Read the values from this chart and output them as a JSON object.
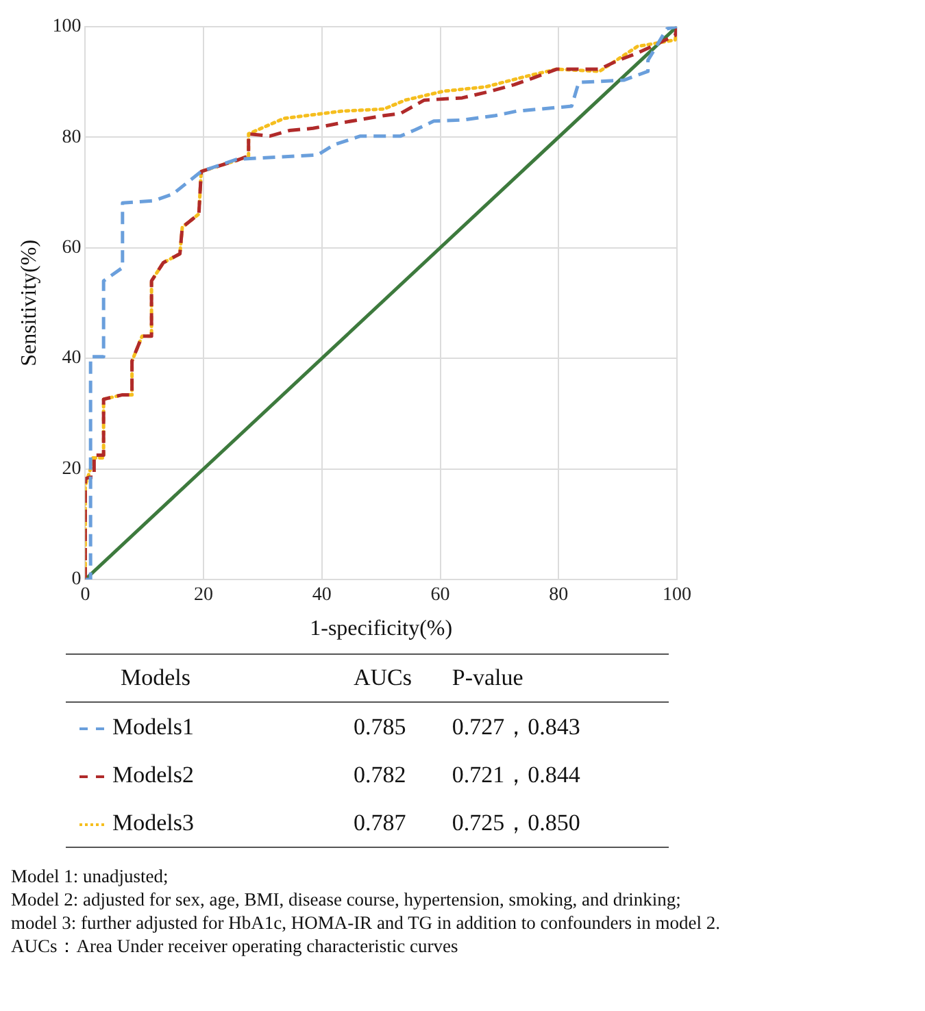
{
  "chart_data": {
    "type": "line",
    "xlabel": "1-specificity(%)",
    "ylabel": "Sensitivity(%)",
    "xlim": [
      0,
      100
    ],
    "ylim": [
      0,
      100
    ],
    "xticks": [
      0,
      20,
      40,
      60,
      80,
      100
    ],
    "yticks": [
      0,
      20,
      40,
      60,
      80,
      100
    ],
    "grid": true,
    "marker": "none",
    "legend": "bottom",
    "legend_title": "Models",
    "series": [
      {
        "name": "Models1",
        "color": "#6a9fdc",
        "line_style": "dashed",
        "x": [
          0,
          0.9,
          0.9,
          3.1,
          3.1,
          6.3,
          6.3,
          11.6,
          14.8,
          19.6,
          25.6,
          39.3,
          42,
          46.5,
          53.3,
          55.7,
          58.9,
          63.7,
          69.3,
          72.9,
          82.2,
          83.4,
          91,
          95.1,
          95.1,
          98.3,
          100
        ],
        "values": [
          0,
          0,
          40.3,
          40.3,
          54,
          56.4,
          68.1,
          68.5,
          69.7,
          73.8,
          76,
          76.8,
          78.6,
          80.2,
          80.2,
          81.3,
          82.9,
          83.1,
          83.9,
          84.7,
          85.6,
          89.9,
          90.3,
          91.9,
          93.9,
          99.6,
          100
        ]
      },
      {
        "name": "Models2",
        "color": "#b02a2a",
        "line_style": "dashed",
        "x": [
          0,
          0,
          0.8,
          1.5,
          1.5,
          3.1,
          3.1,
          6.3,
          7.9,
          7.9,
          9.6,
          11.2,
          11.2,
          13.2,
          16,
          16.4,
          19.2,
          19.6,
          25.6,
          27.6,
          27.6,
          31.2,
          34.5,
          38.5,
          43.3,
          50.5,
          53.3,
          57.3,
          63.7,
          68.5,
          72.5,
          75.7,
          79.7,
          86.9,
          90.1,
          93.3,
          96.5,
          99.7,
          100
        ],
        "values": [
          0,
          18.2,
          18.5,
          18.5,
          22.5,
          22.5,
          32.6,
          33.4,
          33.4,
          39.5,
          44,
          44,
          54,
          57.3,
          58.9,
          63.7,
          66.1,
          73.8,
          75.8,
          76.6,
          80.6,
          80.2,
          81.2,
          81.6,
          82.6,
          83.9,
          84.3,
          86.7,
          87.1,
          88.3,
          89.5,
          90.7,
          92.3,
          92.3,
          93.9,
          95.2,
          96.8,
          98.4,
          100
        ]
      },
      {
        "name": "Models3",
        "color": "#f5be1e",
        "line_style": "dotted",
        "x": [
          0,
          0,
          1.2,
          1.2,
          3.1,
          3.1,
          6.3,
          7.9,
          7.9,
          9.6,
          11.2,
          11.2,
          13.2,
          16,
          16.4,
          19.2,
          19.6,
          25.6,
          27.6,
          27.6,
          33.6,
          43.3,
          50.5,
          54.1,
          60.5,
          67.7,
          74.9,
          79.7,
          86.9,
          93.3,
          99.7,
          100
        ],
        "values": [
          0,
          17,
          21,
          22,
          22,
          32.6,
          33.4,
          33.4,
          39.5,
          44,
          44,
          54,
          57.3,
          58.9,
          63.7,
          66.1,
          73.8,
          75.8,
          76.6,
          80.6,
          83.4,
          84.7,
          85.1,
          86.7,
          88.3,
          89.1,
          91.1,
          92.3,
          91.9,
          96.4,
          97.6,
          100
        ]
      },
      {
        "color": "#3d7a3d",
        "line_style": "solid",
        "x": [
          0,
          100
        ],
        "values": [
          0,
          100
        ]
      }
    ],
    "annotations": [
      "AUCs",
      "P-value",
      "0.785",
      "0.727，0.843",
      "0.782",
      "0.721，0.844",
      "0.787",
      "0.725，0.850",
      "Model 1: unadjusted;",
      "Model 2: adjusted for sex, age, BMI, disease course, hypertension, smoking, and drinking;",
      "model 3: further adjusted for HbA1c, HOMA-IR and TG in addition to confounders in model 2.",
      "AUCs：Area Under receiver operating characteristic curves"
    ]
  }
}
